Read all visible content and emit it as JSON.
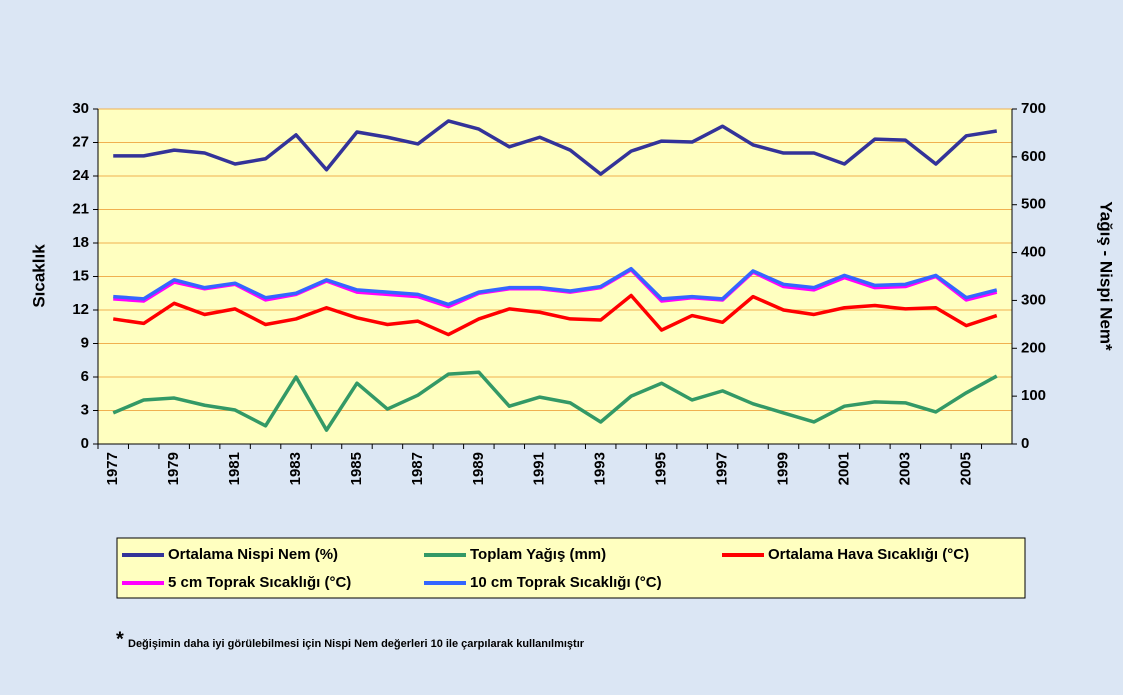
{
  "chart_data": {
    "type": "line",
    "y_label": "Sıcaklık",
    "y2_label": "Yağış - Nispi Nem*",
    "footnote_mark": "*",
    "footnote": "Değişimin daha iyi görülebilmesi için Nispi Nem değerleri 10 ile çarpılarak kullanılmıştır",
    "categories": [
      "1977",
      null,
      "1979",
      null,
      "1981",
      null,
      "1983",
      null,
      "1985",
      null,
      "1987",
      null,
      "1989",
      null,
      "1991",
      null,
      "1993",
      null,
      "1995",
      null,
      "1997",
      null,
      "1999",
      null,
      "2001",
      null,
      "2003",
      null,
      "2005",
      null
    ],
    "ylim": [
      0,
      30
    ],
    "yticks": [
      0,
      3,
      6,
      9,
      12,
      15,
      18,
      21,
      24,
      27,
      30
    ],
    "y2lim": [
      0,
      700
    ],
    "y2ticks": [
      0,
      100,
      200,
      300,
      400,
      500,
      600,
      700
    ],
    "grid": true,
    "series": [
      {
        "name": "Ortalama Nispi Nem (%)",
        "color": "#333399",
        "axis": "y2",
        "values": [
          602,
          602,
          614,
          608,
          585,
          596,
          646,
          573,
          652,
          641,
          627,
          675,
          658,
          621,
          641,
          614,
          564,
          612,
          633,
          631,
          664,
          625,
          608,
          608,
          585,
          637,
          635,
          585,
          644,
          654
        ]
      },
      {
        "name": "Toplam Yağış (mm)",
        "color": "#339966",
        "axis": "y2",
        "values": [
          65,
          92,
          96,
          81,
          71,
          38,
          140,
          29,
          127,
          73,
          102,
          146,
          150,
          79,
          98,
          86,
          46,
          100,
          127,
          92,
          111,
          84,
          65,
          46,
          79,
          88,
          86,
          67,
          107,
          142
        ]
      },
      {
        "name": "Ortalama Hava Sıcaklığı (°C)",
        "color": "#ff0000",
        "values": [
          11.2,
          10.8,
          12.6,
          11.6,
          12.1,
          10.7,
          11.2,
          12.2,
          11.3,
          10.7,
          11.0,
          9.8,
          11.2,
          12.1,
          11.8,
          11.2,
          11.1,
          13.3,
          10.2,
          11.5,
          10.9,
          13.2,
          12.0,
          11.6,
          12.2,
          12.4,
          12.1,
          12.2,
          10.6,
          11.5
        ]
      },
      {
        "name": "5 cm Toprak Sıcaklığı (°C)",
        "color": "#ff00ff",
        "values": [
          13.0,
          12.8,
          14.5,
          13.9,
          14.3,
          12.9,
          13.4,
          14.6,
          13.6,
          13.4,
          13.2,
          12.3,
          13.5,
          13.9,
          13.9,
          13.6,
          14.0,
          15.6,
          12.8,
          13.1,
          12.9,
          15.4,
          14.1,
          13.8,
          14.9,
          14.0,
          14.1,
          15.0,
          12.9,
          13.6
        ]
      },
      {
        "name": "10 cm Toprak Sıcaklığı (°C)",
        "color": "#3366ff",
        "values": [
          13.2,
          13.0,
          14.7,
          14.0,
          14.4,
          13.1,
          13.5,
          14.7,
          13.8,
          13.6,
          13.4,
          12.5,
          13.6,
          14.0,
          14.0,
          13.7,
          14.1,
          15.7,
          13.0,
          13.2,
          13.0,
          15.5,
          14.3,
          14.0,
          15.1,
          14.2,
          14.3,
          15.1,
          13.1,
          13.8
        ]
      }
    ]
  }
}
